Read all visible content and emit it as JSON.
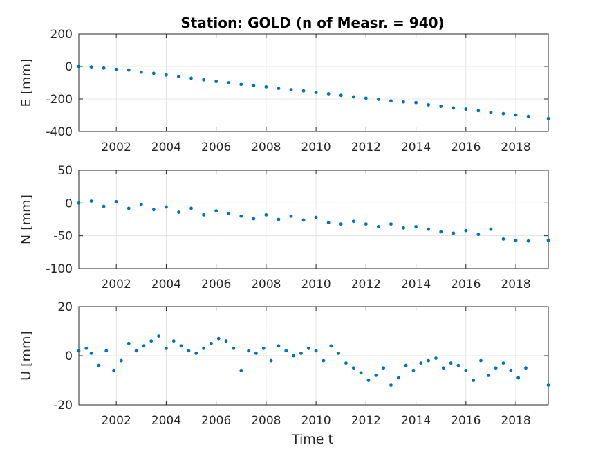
{
  "chart_data": {
    "type": "scatter",
    "title": "Station: GOLD (n of Measr. = 940)",
    "marker_color": "#0072BD",
    "grid": true,
    "xlim": [
      2000.5,
      2019.3
    ],
    "xticks": [
      2002,
      2004,
      2006,
      2008,
      2010,
      2012,
      2014,
      2016,
      2018
    ],
    "xlabel": "Time t",
    "panels": [
      {
        "name": "E",
        "ylabel": "E [mm]",
        "ylim": [
          -400,
          200
        ],
        "yticks": [
          -400,
          -200,
          0,
          200
        ],
        "x": [
          2000.5,
          2001.0,
          2001.5,
          2002.0,
          2002.5,
          2003.0,
          2003.5,
          2004.0,
          2004.5,
          2005.0,
          2005.5,
          2006.0,
          2006.5,
          2007.0,
          2007.5,
          2008.0,
          2008.5,
          2009.0,
          2009.5,
          2010.0,
          2010.5,
          2011.0,
          2011.5,
          2012.0,
          2012.5,
          2013.0,
          2013.5,
          2014.0,
          2014.5,
          2015.0,
          2015.5,
          2016.0,
          2016.5,
          2017.0,
          2017.5,
          2018.0,
          2018.5,
          2019.3
        ],
        "values": [
          0,
          -3,
          -10,
          -18,
          -22,
          -35,
          -42,
          -52,
          -62,
          -72,
          -82,
          -92,
          -100,
          -110,
          -117,
          -125,
          -135,
          -143,
          -150,
          -160,
          -168,
          -178,
          -187,
          -195,
          -202,
          -212,
          -218,
          -222,
          -236,
          -245,
          -255,
          -262,
          -272,
          -283,
          -290,
          -298,
          -307,
          -320
        ]
      },
      {
        "name": "N",
        "ylabel": "N [mm]",
        "ylim": [
          -100,
          50
        ],
        "yticks": [
          -100,
          -50,
          0,
          50
        ],
        "x": [
          2000.5,
          2001.0,
          2001.5,
          2002.0,
          2002.5,
          2003.0,
          2003.5,
          2004.0,
          2004.5,
          2005.0,
          2005.5,
          2006.0,
          2006.5,
          2007.0,
          2007.5,
          2008.0,
          2008.5,
          2009.0,
          2009.5,
          2010.0,
          2010.5,
          2011.0,
          2011.5,
          2012.0,
          2012.5,
          2013.0,
          2013.5,
          2014.0,
          2014.5,
          2015.0,
          2015.5,
          2016.0,
          2016.5,
          2017.0,
          2017.5,
          2018.0,
          2018.5,
          2019.3
        ],
        "values": [
          0,
          3,
          -5,
          2,
          -8,
          -2,
          -10,
          -6,
          -14,
          -8,
          -18,
          -12,
          -16,
          -20,
          -24,
          -18,
          -25,
          -20,
          -26,
          -22,
          -30,
          -32,
          -28,
          -32,
          -36,
          -32,
          -38,
          -36,
          -40,
          -44,
          -46,
          -42,
          -48,
          -40,
          -55,
          -57,
          -58,
          -57
        ]
      },
      {
        "name": "U",
        "ylabel": "U [mm]",
        "ylim": [
          -20,
          20
        ],
        "yticks": [
          -20,
          0,
          20
        ],
        "x": [
          2000.5,
          2000.8,
          2001.0,
          2001.3,
          2001.6,
          2001.9,
          2002.2,
          2002.5,
          2002.8,
          2003.1,
          2003.4,
          2003.7,
          2004.0,
          2004.3,
          2004.6,
          2004.9,
          2005.2,
          2005.5,
          2005.8,
          2006.1,
          2006.4,
          2006.7,
          2007.0,
          2007.3,
          2007.6,
          2007.9,
          2008.2,
          2008.5,
          2008.8,
          2009.1,
          2009.4,
          2009.7,
          2010.0,
          2010.3,
          2010.6,
          2010.9,
          2011.2,
          2011.5,
          2011.8,
          2012.1,
          2012.4,
          2012.7,
          2013.0,
          2013.3,
          2013.6,
          2013.9,
          2014.2,
          2014.5,
          2014.8,
          2015.1,
          2015.4,
          2015.7,
          2016.0,
          2016.3,
          2016.6,
          2016.9,
          2017.2,
          2017.5,
          2017.8,
          2018.1,
          2018.4,
          2019.3
        ],
        "values": [
          2,
          3,
          1,
          -4,
          2,
          -6,
          -2,
          5,
          2,
          4,
          6,
          8,
          3,
          6,
          4,
          2,
          1,
          3,
          5,
          7,
          6,
          3,
          -6,
          2,
          1,
          3,
          -2,
          4,
          2,
          0,
          1,
          3,
          2,
          -2,
          4,
          1,
          -3,
          -5,
          -7,
          -10,
          -8,
          -5,
          -12,
          -9,
          -4,
          -6,
          -3,
          -2,
          -1,
          -5,
          -3,
          -4,
          -6,
          -10,
          -2,
          -8,
          -5,
          -3,
          -6,
          -9,
          -5,
          -12
        ]
      }
    ]
  }
}
